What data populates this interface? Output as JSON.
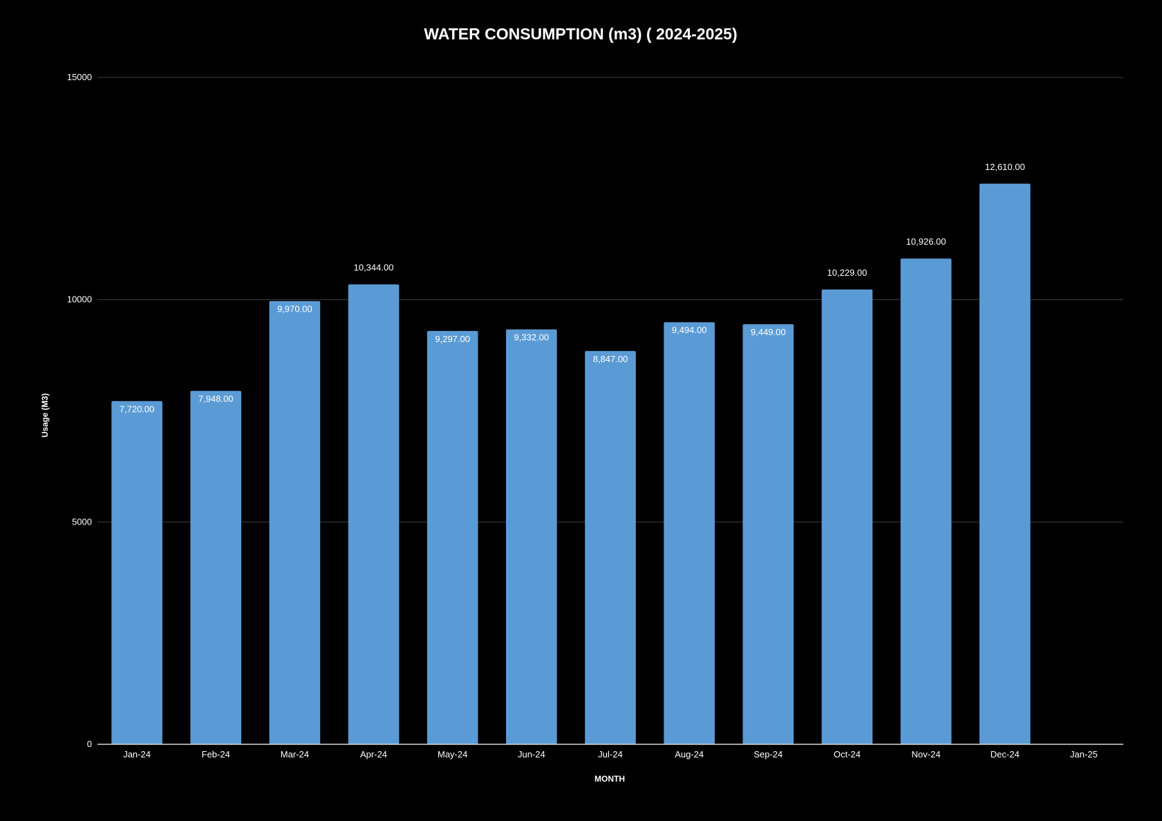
{
  "chart_data": {
    "type": "bar",
    "title": "WATER CONSUMPTION (m3) ( 2024-2025)",
    "xlabel": "MONTH",
    "ylabel": "Usage (M3)",
    "ylim": [
      0,
      15000
    ],
    "yticks": [
      "0",
      "5000",
      "10000",
      "15000"
    ],
    "grid": true,
    "legend": "none",
    "categories": [
      "Jan-24",
      "Feb-24",
      "Mar-24",
      "Apr-24",
      "May-24",
      "Jun-24",
      "Jul-24",
      "Aug-24",
      "Sep-24",
      "Oct-24",
      "Nov-24",
      "Dec-24",
      "Jan-25"
    ],
    "values": [
      7720,
      7948,
      9970,
      10344,
      9297,
      9332,
      8847,
      9494,
      9449,
      10229,
      10926,
      12610,
      null
    ],
    "data_labels": [
      "7,720.00",
      "7,948.00",
      "9,970.00",
      "10,344.00",
      "9,297.00",
      "9,332.00",
      "8,847.00",
      "9,494.00",
      "9,449.00",
      "10,229.00",
      "10,926.00",
      "12,610.00",
      ""
    ],
    "label_outside": [
      false,
      false,
      false,
      true,
      false,
      false,
      false,
      false,
      false,
      true,
      true,
      true,
      false
    ],
    "colors": {
      "background": "#000000",
      "bar": "#5b9bd5",
      "gridline": "#404040",
      "axis": "#d9d9d9",
      "text": "#ffffff"
    }
  }
}
